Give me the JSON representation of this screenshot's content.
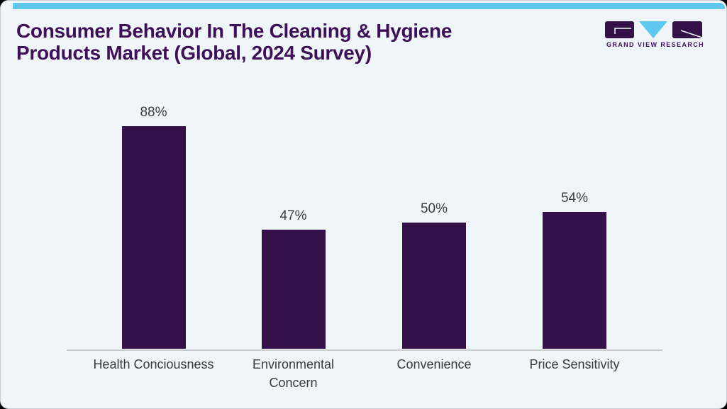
{
  "page": {
    "outside_background": "#000000"
  },
  "card": {
    "background": "#f0f5f9",
    "border_color": "#c9ced6",
    "top_strip_color": "#5ec8ef"
  },
  "header": {
    "title": "Consumer Behavior In The Cleaning & Hygiene Products Market (Global, 2024 Survey)",
    "title_color": "#3d1057"
  },
  "logo": {
    "brand": "GRAND VIEW RESEARCH",
    "purple": "#341148",
    "blue": "#5ec8ef"
  },
  "chart_data": {
    "type": "bar",
    "title": "Consumer Behavior In The Cleaning & Hygiene Products Market (Global, 2024 Survey)",
    "categories": [
      "Health Conciousness",
      "Environmental Concern",
      "Convenience",
      "Price Sensitivity"
    ],
    "values": [
      88,
      47,
      50,
      54
    ],
    "value_labels": [
      "88%",
      "47%",
      "50%",
      "54%"
    ],
    "tick_labels": [
      "Health Conciousness",
      "Environmental\nConcern",
      "Convenience",
      "Price Sensitivity"
    ],
    "unit": "%",
    "xlabel": "",
    "ylabel": "",
    "ylim": [
      0,
      100
    ],
    "bar_color": "#351149",
    "value_label_color": "#3d3d3d",
    "tick_label_color": "#3a3a3a",
    "axis_line_color": "#cbcbcb",
    "grid": false,
    "legend": "none"
  }
}
